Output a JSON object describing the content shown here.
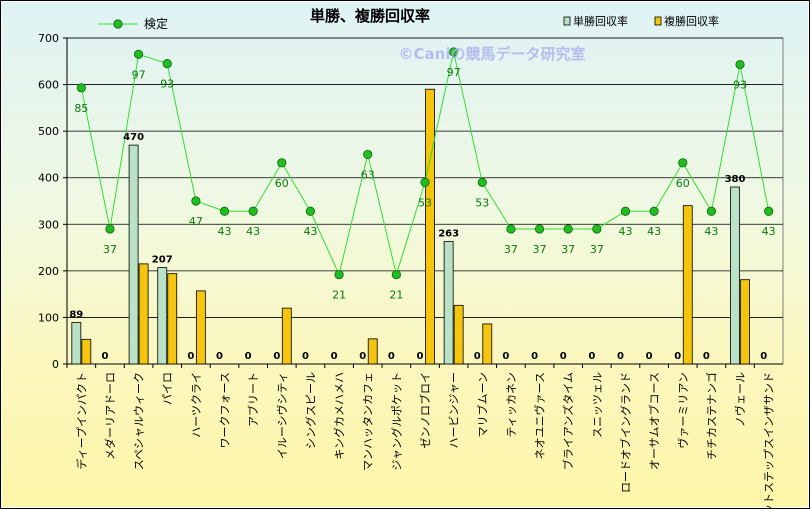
{
  "chart_data": {
    "type": "bar",
    "title": "単勝、複勝回収率",
    "watermark": "©Caniの競馬データ研究室",
    "ylim": [
      0,
      700
    ],
    "yticks": [
      0,
      100,
      200,
      300,
      400,
      500,
      600,
      700
    ],
    "grid": true,
    "legend_position": "top",
    "categories": [
      "ディープインパクト",
      "メダーリアドーロ",
      "スペシャルウィーク",
      "パイロ",
      "ハーツクライ",
      "ワークフォース",
      "アブリート",
      "イルーシヴシティ",
      "シングスピール",
      "キングカメハメハ",
      "マンハッタンカフェ",
      "ジャングルポケット",
      "ゼンノロブロイ",
      "ハービンジャー",
      "マリブムーン",
      "ティッカネン",
      "ネオユニヴァース",
      "ブライアンズタイム",
      "スニッツェル",
      "ロードオブイングランド",
      "オーサムオブコース",
      "ヴァーミリアン",
      "チチカステナンゴ",
      "ノヴェール",
      "フットステップスインザサンド"
    ],
    "series": [
      {
        "name": "単勝回収率",
        "type": "bar",
        "color": "#b9e2c6",
        "values": [
          89,
          0,
          470,
          207,
          0,
          0,
          0,
          0,
          0,
          0,
          0,
          0,
          0,
          263,
          0,
          0,
          0,
          0,
          0,
          0,
          0,
          0,
          0,
          380,
          0
        ]
      },
      {
        "name": "複勝回収率",
        "type": "bar",
        "color": "#f5c40c",
        "values": [
          53,
          0,
          215,
          194,
          157,
          0,
          0,
          120,
          0,
          0,
          54,
          0,
          590,
          126,
          86,
          0,
          0,
          0,
          0,
          0,
          0,
          340,
          0,
          181,
          0
        ]
      },
      {
        "name": "検定",
        "type": "line",
        "color": "#00cc00",
        "values": [
          593,
          290,
          665,
          645,
          350,
          328,
          328,
          432,
          328,
          192,
          450,
          192,
          390,
          670,
          390,
          290,
          290,
          290,
          290,
          328,
          328,
          432,
          328,
          643,
          328
        ],
        "labels": [
          85,
          37,
          97,
          93,
          47,
          43,
          43,
          60,
          43,
          21,
          63,
          21,
          53,
          97,
          53,
          37,
          37,
          37,
          37,
          43,
          43,
          60,
          43,
          93,
          43
        ]
      }
    ],
    "bar_value_labels": [
      "89",
      "0",
      "470",
      "207",
      "0",
      "0",
      "0",
      "0",
      "0",
      "0",
      "0",
      "0",
      "0",
      "263",
      "0",
      "0",
      "0",
      "0",
      "0",
      "0",
      "0",
      "0",
      "0",
      "380",
      "0"
    ]
  }
}
